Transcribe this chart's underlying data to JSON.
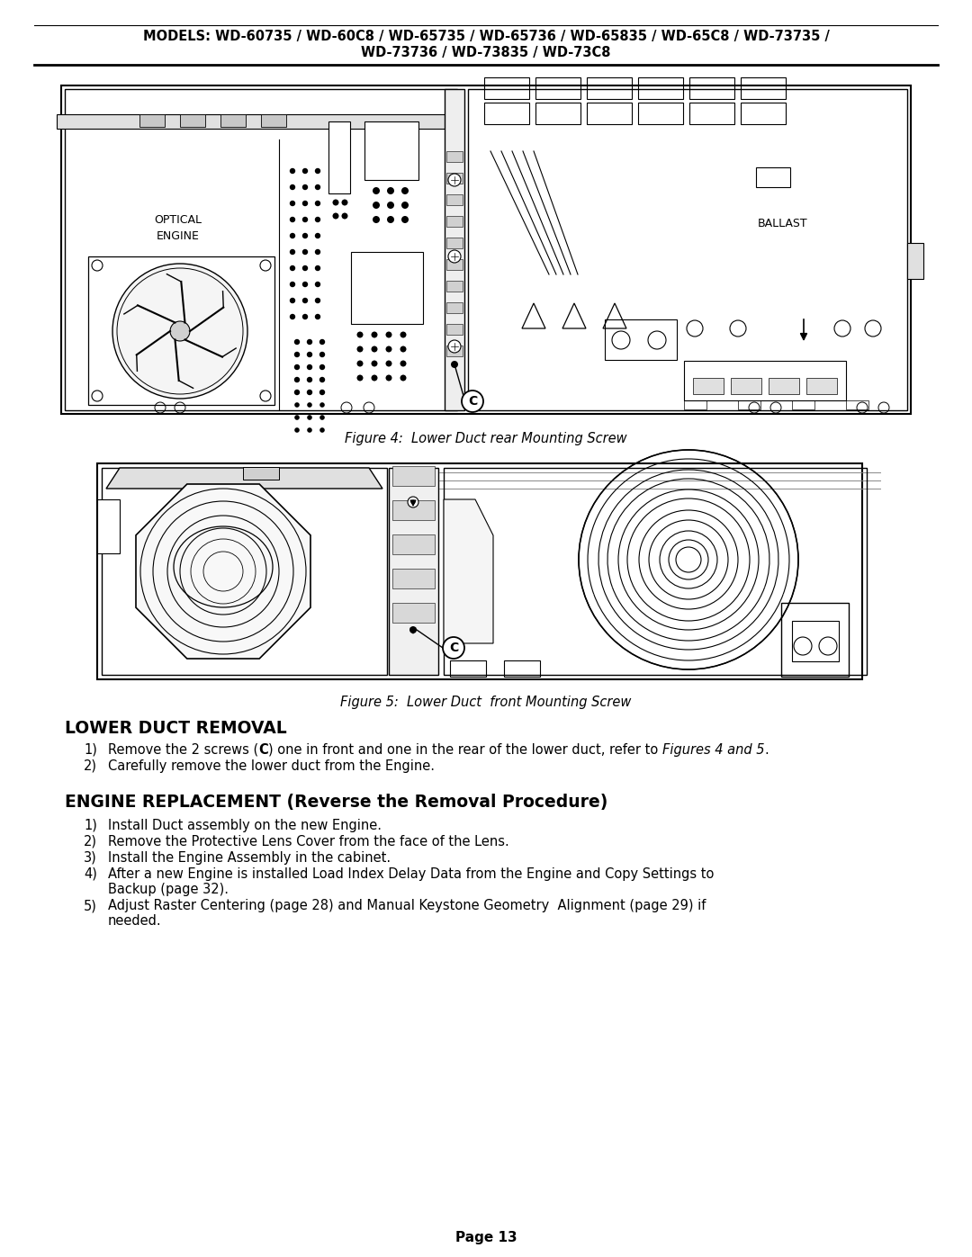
{
  "page_bg": "#ffffff",
  "header_line1": "MODELS: WD-60735 / WD-60C8 / WD-65735 / WD-65736 / WD-65835 / WD-65C8 / WD-73735 /",
  "header_line2": "WD-73736 / WD-73835 / WD-73C8",
  "fig4_caption": "Figure 4:  Lower Duct rear Mounting Screw",
  "fig5_caption": "Figure 5:  Lower Duct  front Mounting Screw",
  "sec1_title": "LOWER DUCT REMOVAL",
  "sec1_item1_pre": "Remove the 2 screws (",
  "sec1_item1_bold": "C",
  "sec1_item1_mid": ") one in front and one in the rear of the lower duct, refer to ",
  "sec1_item1_italic": "Figures 4 and 5",
  "sec1_item1_post": ".",
  "sec1_item2": "Carefully remove the lower duct from the Engine.",
  "sec2_title": "ENGINE REPLACEMENT (Reverse the Removal Procedure)",
  "sec2_items": [
    "Install Duct assembly on the new Engine.",
    "Remove the Protective Lens Cover from the face of the Lens.",
    "Install the Engine Assembly in the cabinet.",
    "After a new Engine is installed Load Index Delay Data from the Engine and Copy Settings to|Backup (page 32).",
    "Adjust Raster Centering (page 28) and Manual Keystone Geometry  Alignment (page 29) if|needed."
  ],
  "page_num": "Page 13"
}
